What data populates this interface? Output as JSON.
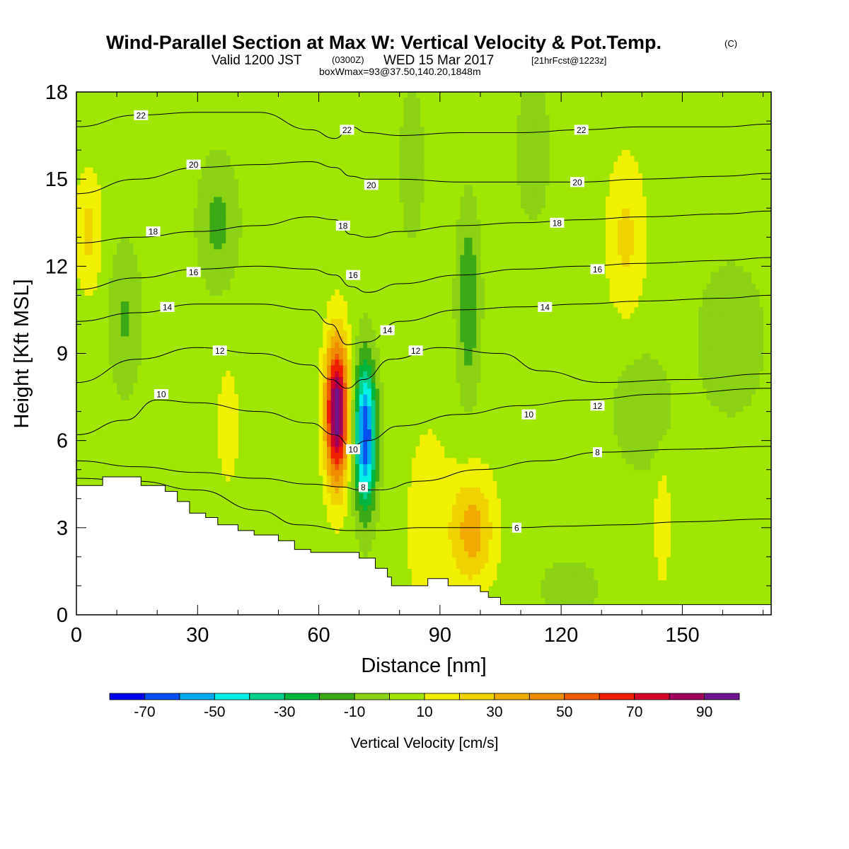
{
  "title": {
    "main": "Wind-Parallel Section at Max W: Vertical Velocity & Pot.Temp.",
    "copyright": "(C)",
    "valid_prefix": "Valid 1200 JST",
    "valid_utc": "(0300Z)",
    "valid_date": "WED 15 Mar 2017",
    "forecast": "[21hrFcst@1223z]",
    "boxwmax": "boxWmax=93@37.50,140.20,1848m"
  },
  "chart_data": {
    "type": "heatmap",
    "xlabel": "Distance [nm]",
    "ylabel": "Height [Kft MSL]",
    "xlim": [
      0,
      172
    ],
    "ylim": [
      0,
      18
    ],
    "xticks": [
      "0",
      "30",
      "60",
      "90",
      "120",
      "150"
    ],
    "xtick_values": [
      0,
      30,
      60,
      90,
      120,
      150
    ],
    "yticks": [
      "0",
      "3",
      "6",
      "9",
      "12",
      "15",
      "18"
    ],
    "ytick_values": [
      0,
      3,
      6,
      9,
      12,
      15,
      18
    ],
    "colorbar": {
      "title": "Vertical Velocity [cm/s]",
      "boundaries": [
        -80,
        -70,
        -60,
        -50,
        -40,
        -30,
        -20,
        -10,
        0,
        10,
        20,
        30,
        40,
        50,
        60,
        70,
        80,
        90,
        100
      ],
      "labels": [
        "-70",
        "-50",
        "-30",
        "-10",
        "10",
        "30",
        "50",
        "70",
        "90"
      ],
      "label_values": [
        -70,
        -50,
        -30,
        -10,
        10,
        30,
        50,
        70,
        90
      ],
      "colors": [
        "#0000f0",
        "#0050f0",
        "#00aaf0",
        "#00f0e6",
        "#00d28c",
        "#00b43c",
        "#3caa14",
        "#8cd214",
        "#a0e600",
        "#f0f000",
        "#f0d200",
        "#f0aa00",
        "#f08c00",
        "#f05a00",
        "#f01e00",
        "#d20028",
        "#a0005a",
        "#6e148c"
      ]
    },
    "terrain_profile": {
      "x": [
        0,
        6.5,
        6.5,
        16,
        16,
        22,
        22,
        25,
        25,
        28,
        28,
        32,
        32,
        35,
        35,
        40,
        40,
        44,
        44,
        50,
        50,
        54,
        54,
        58,
        58,
        70,
        70,
        74,
        74,
        77,
        77,
        78,
        78,
        81,
        81,
        87,
        87,
        92,
        92,
        100,
        100,
        102,
        102,
        105,
        105,
        107,
        107,
        172
      ],
      "y": [
        4.45,
        4.45,
        4.75,
        4.75,
        4.45,
        4.45,
        4.25,
        4.25,
        3.9,
        3.9,
        3.5,
        3.5,
        3.35,
        3.35,
        3.1,
        3.1,
        2.9,
        2.9,
        2.75,
        2.75,
        2.55,
        2.55,
        2.25,
        2.25,
        2.15,
        2.15,
        1.95,
        1.95,
        1.6,
        1.6,
        1.3,
        1.3,
        1.0,
        1.0,
        1.0,
        1.0,
        1.25,
        1.25,
        1.0,
        1.0,
        0.8,
        0.8,
        0.6,
        0.6,
        0.35,
        0.35,
        0.35,
        0.35
      ]
    },
    "velocity_features": [
      {
        "x": 64.5,
        "y": 7.0,
        "sx": 2.8,
        "sy": 2.4,
        "w": 95
      },
      {
        "x": 71.5,
        "y": 6.2,
        "sx": 2.7,
        "sy": 2.5,
        "w": -75
      },
      {
        "x": 98,
        "y": 2.9,
        "sx": 5.5,
        "sy": 1.9,
        "w": 30
      },
      {
        "x": 87,
        "y": 3.0,
        "sx": 6.0,
        "sy": 4.0,
        "w": 10
      },
      {
        "x": 136,
        "y": 13.0,
        "sx": 4.5,
        "sy": 2.6,
        "w": 18
      },
      {
        "x": 3,
        "y": 13.2,
        "sx": 3.0,
        "sy": 2.0,
        "w": 18
      },
      {
        "x": 37.5,
        "y": 6.5,
        "sx": 2.5,
        "sy": 1.8,
        "w": 14
      },
      {
        "x": 145,
        "y": 3.2,
        "sx": 2.0,
        "sy": 2.2,
        "w": 12
      },
      {
        "x": 97,
        "y": 10.8,
        "sx": 2.8,
        "sy": 3.2,
        "w": -25
      },
      {
        "x": 12,
        "y": 10.2,
        "sx": 4.0,
        "sy": 2.6,
        "w": -16
      },
      {
        "x": 35,
        "y": 13.5,
        "sx": 5.0,
        "sy": 2.2,
        "w": -18
      },
      {
        "x": 140,
        "y": 7.0,
        "sx": 7.0,
        "sy": 2.0,
        "w": -14
      },
      {
        "x": 162,
        "y": 9.5,
        "sx": 9.0,
        "sy": 2.8,
        "w": -12
      },
      {
        "x": 122,
        "y": 0.9,
        "sx": 9.0,
        "sy": 1.3,
        "w": -9
      },
      {
        "x": 113,
        "y": 16.0,
        "sx": 6.0,
        "sy": 3.5,
        "w": -8
      },
      {
        "x": 83,
        "y": 15.5,
        "sx": 5.0,
        "sy": 4.5,
        "w": -7
      }
    ],
    "background_velocity": 5,
    "theta_contours": [
      {
        "label": "6",
        "x": [
          0,
          15,
          30,
          45,
          55,
          68,
          75,
          85,
          100,
          110,
          120,
          135,
          150,
          172
        ],
        "y": [
          4.7,
          4.6,
          4.3,
          3.6,
          3.1,
          2.9,
          2.9,
          3.0,
          3.0,
          3.0,
          3.05,
          3.1,
          3.2,
          3.3
        ],
        "label_pos": [
          109,
          3.0
        ]
      },
      {
        "label": "8",
        "x": [
          0,
          15,
          30,
          45,
          58,
          66,
          70,
          75,
          85,
          100,
          115,
          130,
          150,
          172
        ],
        "y": [
          5.3,
          5.1,
          4.9,
          4.7,
          4.5,
          4.4,
          4.3,
          4.3,
          4.6,
          5.0,
          5.3,
          5.6,
          5.7,
          5.8
        ],
        "label_pos": [
          129,
          5.6
        ]
      },
      {
        "label": "10",
        "x": [
          0,
          12,
          20,
          30,
          45,
          58,
          64,
          68,
          72,
          80,
          95,
          110,
          125,
          145,
          172
        ],
        "y": [
          6.2,
          6.7,
          7.4,
          7.3,
          7.0,
          6.6,
          6.2,
          5.8,
          6.0,
          6.5,
          6.9,
          7.2,
          7.4,
          7.6,
          7.8
        ],
        "label_pos": [
          112,
          6.9
        ]
      },
      {
        "label": "12",
        "x": [
          0,
          15,
          30,
          45,
          58,
          63,
          67,
          71,
          78,
          90,
          105,
          115,
          130,
          150,
          172
        ],
        "y": [
          8.0,
          8.8,
          9.2,
          9.0,
          8.6,
          8.1,
          7.8,
          8.1,
          8.8,
          9.2,
          9.0,
          8.4,
          8.0,
          8.1,
          8.3
        ],
        "label_pos": [
          84,
          9.1
        ]
      },
      {
        "label": "14",
        "x": [
          0,
          15,
          30,
          45,
          58,
          63,
          67,
          72,
          80,
          95,
          110,
          125,
          140,
          160,
          172
        ],
        "y": [
          10.1,
          10.4,
          10.7,
          10.7,
          10.5,
          10.0,
          9.3,
          9.4,
          10.1,
          10.5,
          10.6,
          10.7,
          10.8,
          10.9,
          11.0
        ],
        "label_pos": [
          116,
          10.6
        ]
      },
      {
        "label": "16",
        "x": [
          0,
          15,
          30,
          45,
          58,
          64,
          68,
          72,
          80,
          95,
          110,
          125,
          140,
          160,
          172
        ],
        "y": [
          11.2,
          11.6,
          11.9,
          12.0,
          11.9,
          11.7,
          11.3,
          11.1,
          11.4,
          11.7,
          11.9,
          12.0,
          12.1,
          12.2,
          12.3
        ],
        "label_pos": [
          129,
          11.9
        ]
      },
      {
        "label": "18",
        "x": [
          0,
          15,
          30,
          45,
          58,
          64,
          68,
          72,
          80,
          95,
          110,
          125,
          140,
          160,
          172
        ],
        "y": [
          12.8,
          13.0,
          13.2,
          13.4,
          13.7,
          13.6,
          13.1,
          13.0,
          13.2,
          13.4,
          13.5,
          13.6,
          13.7,
          13.8,
          13.9
        ],
        "label_pos": [
          119,
          13.5
        ]
      },
      {
        "label": "20",
        "x": [
          0,
          15,
          30,
          45,
          58,
          64,
          68,
          72,
          80,
          95,
          110,
          125,
          140,
          160,
          172
        ],
        "y": [
          14.5,
          15.0,
          15.4,
          15.5,
          15.6,
          15.4,
          15.1,
          15.0,
          15.0,
          14.9,
          14.9,
          14.9,
          15.0,
          15.1,
          15.2
        ],
        "label_pos": [
          124,
          14.9
        ]
      },
      {
        "label": "22",
        "x": [
          0,
          15,
          30,
          45,
          58,
          64,
          68,
          72,
          80,
          95,
          110,
          125,
          140,
          160,
          172
        ],
        "y": [
          16.8,
          17.2,
          17.3,
          17.3,
          16.7,
          16.4,
          16.8,
          16.6,
          16.5,
          16.6,
          16.6,
          16.7,
          16.8,
          16.8,
          16.9
        ],
        "label_pos": [
          125,
          16.7
        ]
      }
    ],
    "extra_contour_labels": [
      {
        "label": "22",
        "pos": [
          16,
          17.2
        ]
      },
      {
        "label": "20",
        "pos": [
          29,
          15.5
        ]
      },
      {
        "label": "18",
        "pos": [
          19,
          13.2
        ]
      },
      {
        "label": "16",
        "pos": [
          29,
          11.8
        ]
      },
      {
        "label": "14",
        "pos": [
          22.5,
          10.6
        ]
      },
      {
        "label": "12",
        "pos": [
          35.5,
          9.1
        ]
      },
      {
        "label": "10",
        "pos": [
          21,
          7.6
        ]
      },
      {
        "label": "22",
        "pos": [
          67,
          16.7
        ]
      },
      {
        "label": "20",
        "pos": [
          73,
          14.8
        ]
      },
      {
        "label": "18",
        "pos": [
          66,
          13.4
        ]
      },
      {
        "label": "16",
        "pos": [
          68.5,
          11.7
        ]
      },
      {
        "label": "14",
        "pos": [
          77,
          9.8
        ]
      },
      {
        "label": "12",
        "pos": [
          129,
          7.2
        ]
      },
      {
        "label": "10",
        "pos": [
          68.5,
          5.7
        ]
      },
      {
        "label": "8",
        "pos": [
          71,
          4.4
        ]
      }
    ]
  }
}
